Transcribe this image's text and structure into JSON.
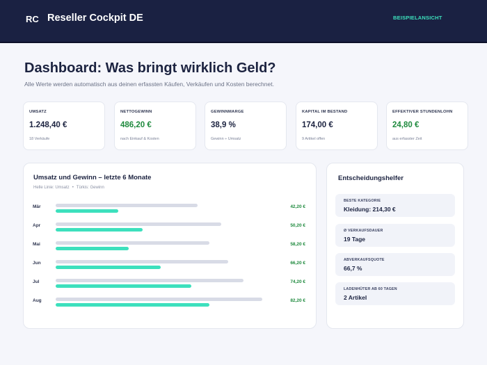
{
  "header": {
    "logo": "RC",
    "title": "Reseller Cockpit DE",
    "badge": "BEISPIELANSICHT"
  },
  "page": {
    "title": "Dashboard: Was bringt wirklich Geld?",
    "subtitle": "Alle Werte werden automatisch aus deinen erfassten Käufen, Verkäufen und Kosten berechnet."
  },
  "kpis": [
    {
      "label": "UMSATZ",
      "value": "1.248,40 €",
      "note": "18 Verkäufe",
      "highlight": false
    },
    {
      "label": "NETTOGEWINN",
      "value": "486,20 €",
      "note": "nach Einkauf & Kosten",
      "highlight": true
    },
    {
      "label": "GEWINNMARGE",
      "value": "38,9 %",
      "note": "Gewinn ÷ Umsatz",
      "highlight": false
    },
    {
      "label": "KAPITAL IM BESTAND",
      "value": "174,00 €",
      "note": "9 Artikel offen",
      "highlight": false
    },
    {
      "label": "EFFEKTIVER STUNDENLOHN",
      "value": "24,80 €",
      "note": "aus erfasster Zeit",
      "highlight": true
    }
  ],
  "chart": {
    "title": "Umsatz und Gewinn – letzte 6 Monate",
    "legend_revenue": "Helle Linie: Umsatz",
    "legend_separator": "•",
    "legend_profit": "Türkis: Gewinn",
    "colors": {
      "revenue": "#d8dbe6",
      "profit": "#3de0bd",
      "value_text": "#1f8a3e"
    }
  },
  "chart_data": {
    "type": "bar",
    "categories": [
      "Mär",
      "Apr",
      "Mai",
      "Jun",
      "Jul",
      "Aug"
    ],
    "series": [
      {
        "name": "Umsatz",
        "values": [
          150,
          175,
          162,
          182,
          198,
          218
        ]
      },
      {
        "name": "Gewinn",
        "values": [
          42.2,
          50.2,
          58.2,
          66.2,
          74.2,
          82.2
        ]
      }
    ],
    "value_labels": [
      "42,20 €",
      "50,20 €",
      "58,20 €",
      "66,20 €",
      "74,20 €",
      "82,20 €"
    ]
  },
  "helper": {
    "title": "Entscheidungshelfer",
    "items": [
      {
        "label": "BESTE KATEGORIE",
        "value": "Kleidung: 214,30 €"
      },
      {
        "label": "Ø VERKAUFSDAUER",
        "value": "19 Tage"
      },
      {
        "label": "ABVERKAUFSQUOTE",
        "value": "66,7 %"
      },
      {
        "label": "LADENHÜTER AB 60 TAGEN",
        "value": "2 Artikel"
      }
    ]
  }
}
